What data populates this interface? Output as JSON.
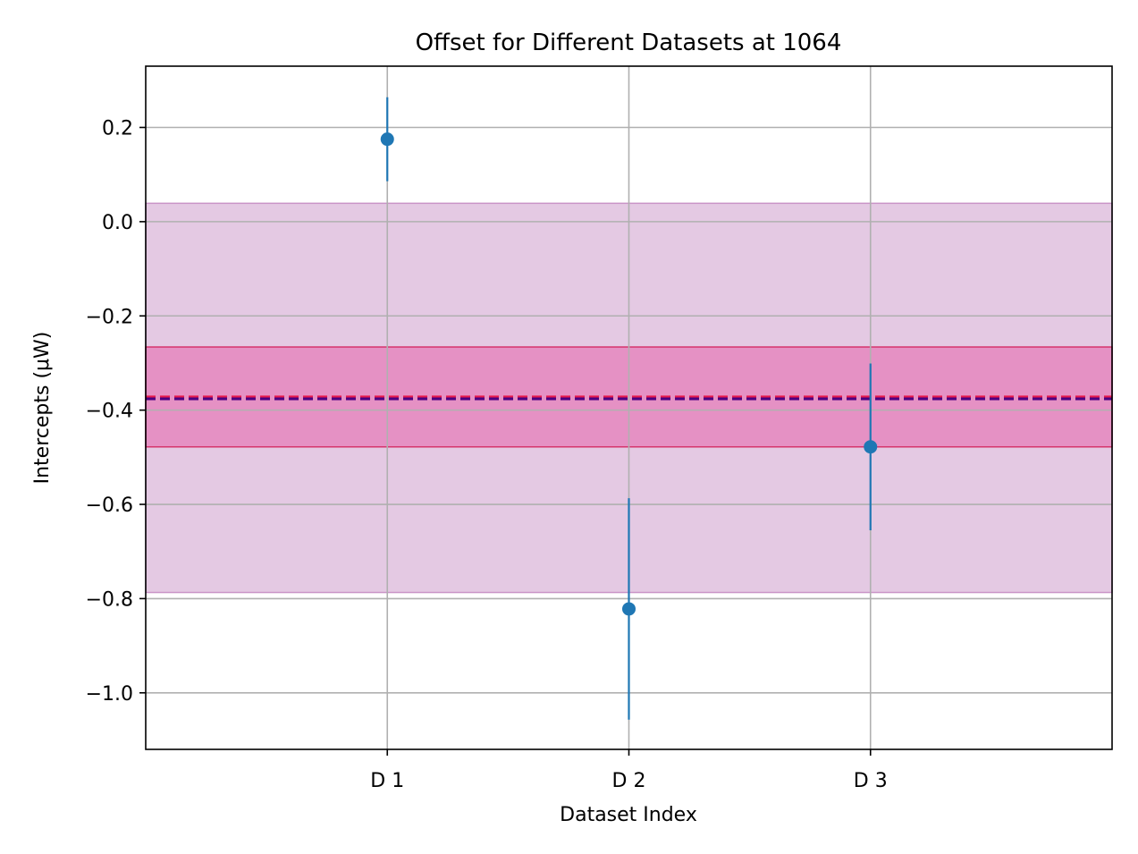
{
  "chart_data": {
    "type": "scatter",
    "title": "Offset for Different Datasets at 1064",
    "xlabel": "Dataset Index",
    "ylabel": "Intercepts (μW)",
    "categories": [
      "D 1",
      "D 2",
      "D 3"
    ],
    "x": [
      1,
      2,
      3
    ],
    "xlim": [
      0,
      4
    ],
    "ylim": [
      -1.12,
      0.33
    ],
    "yticks": [
      0.2,
      0.0,
      -0.2,
      -0.4,
      -0.6,
      -0.8,
      -1.0
    ],
    "ytick_labels": [
      "0.2",
      "0.0",
      "−0.2",
      "−0.4",
      "−0.6",
      "−0.8",
      "−1.0"
    ],
    "grid": true,
    "series": [
      {
        "values": [
          0.175,
          -0.822,
          -0.478
        ],
        "errors": [
          0.089,
          0.235,
          0.177
        ],
        "color": "#1f77b4"
      }
    ],
    "bands": [
      {
        "low": -0.787,
        "high": 0.039,
        "color": "#c994c7",
        "opacity": 0.5,
        "edge": "#c994c7"
      },
      {
        "low": -0.478,
        "high": -0.266,
        "color": "#e7298a",
        "opacity": 0.35,
        "edge": "#d6336c"
      }
    ],
    "hlines": [
      {
        "value": -0.372,
        "color": "#e6194b",
        "dash": true
      },
      {
        "value": -0.376,
        "color": "#4b0082",
        "dash": true
      }
    ]
  }
}
